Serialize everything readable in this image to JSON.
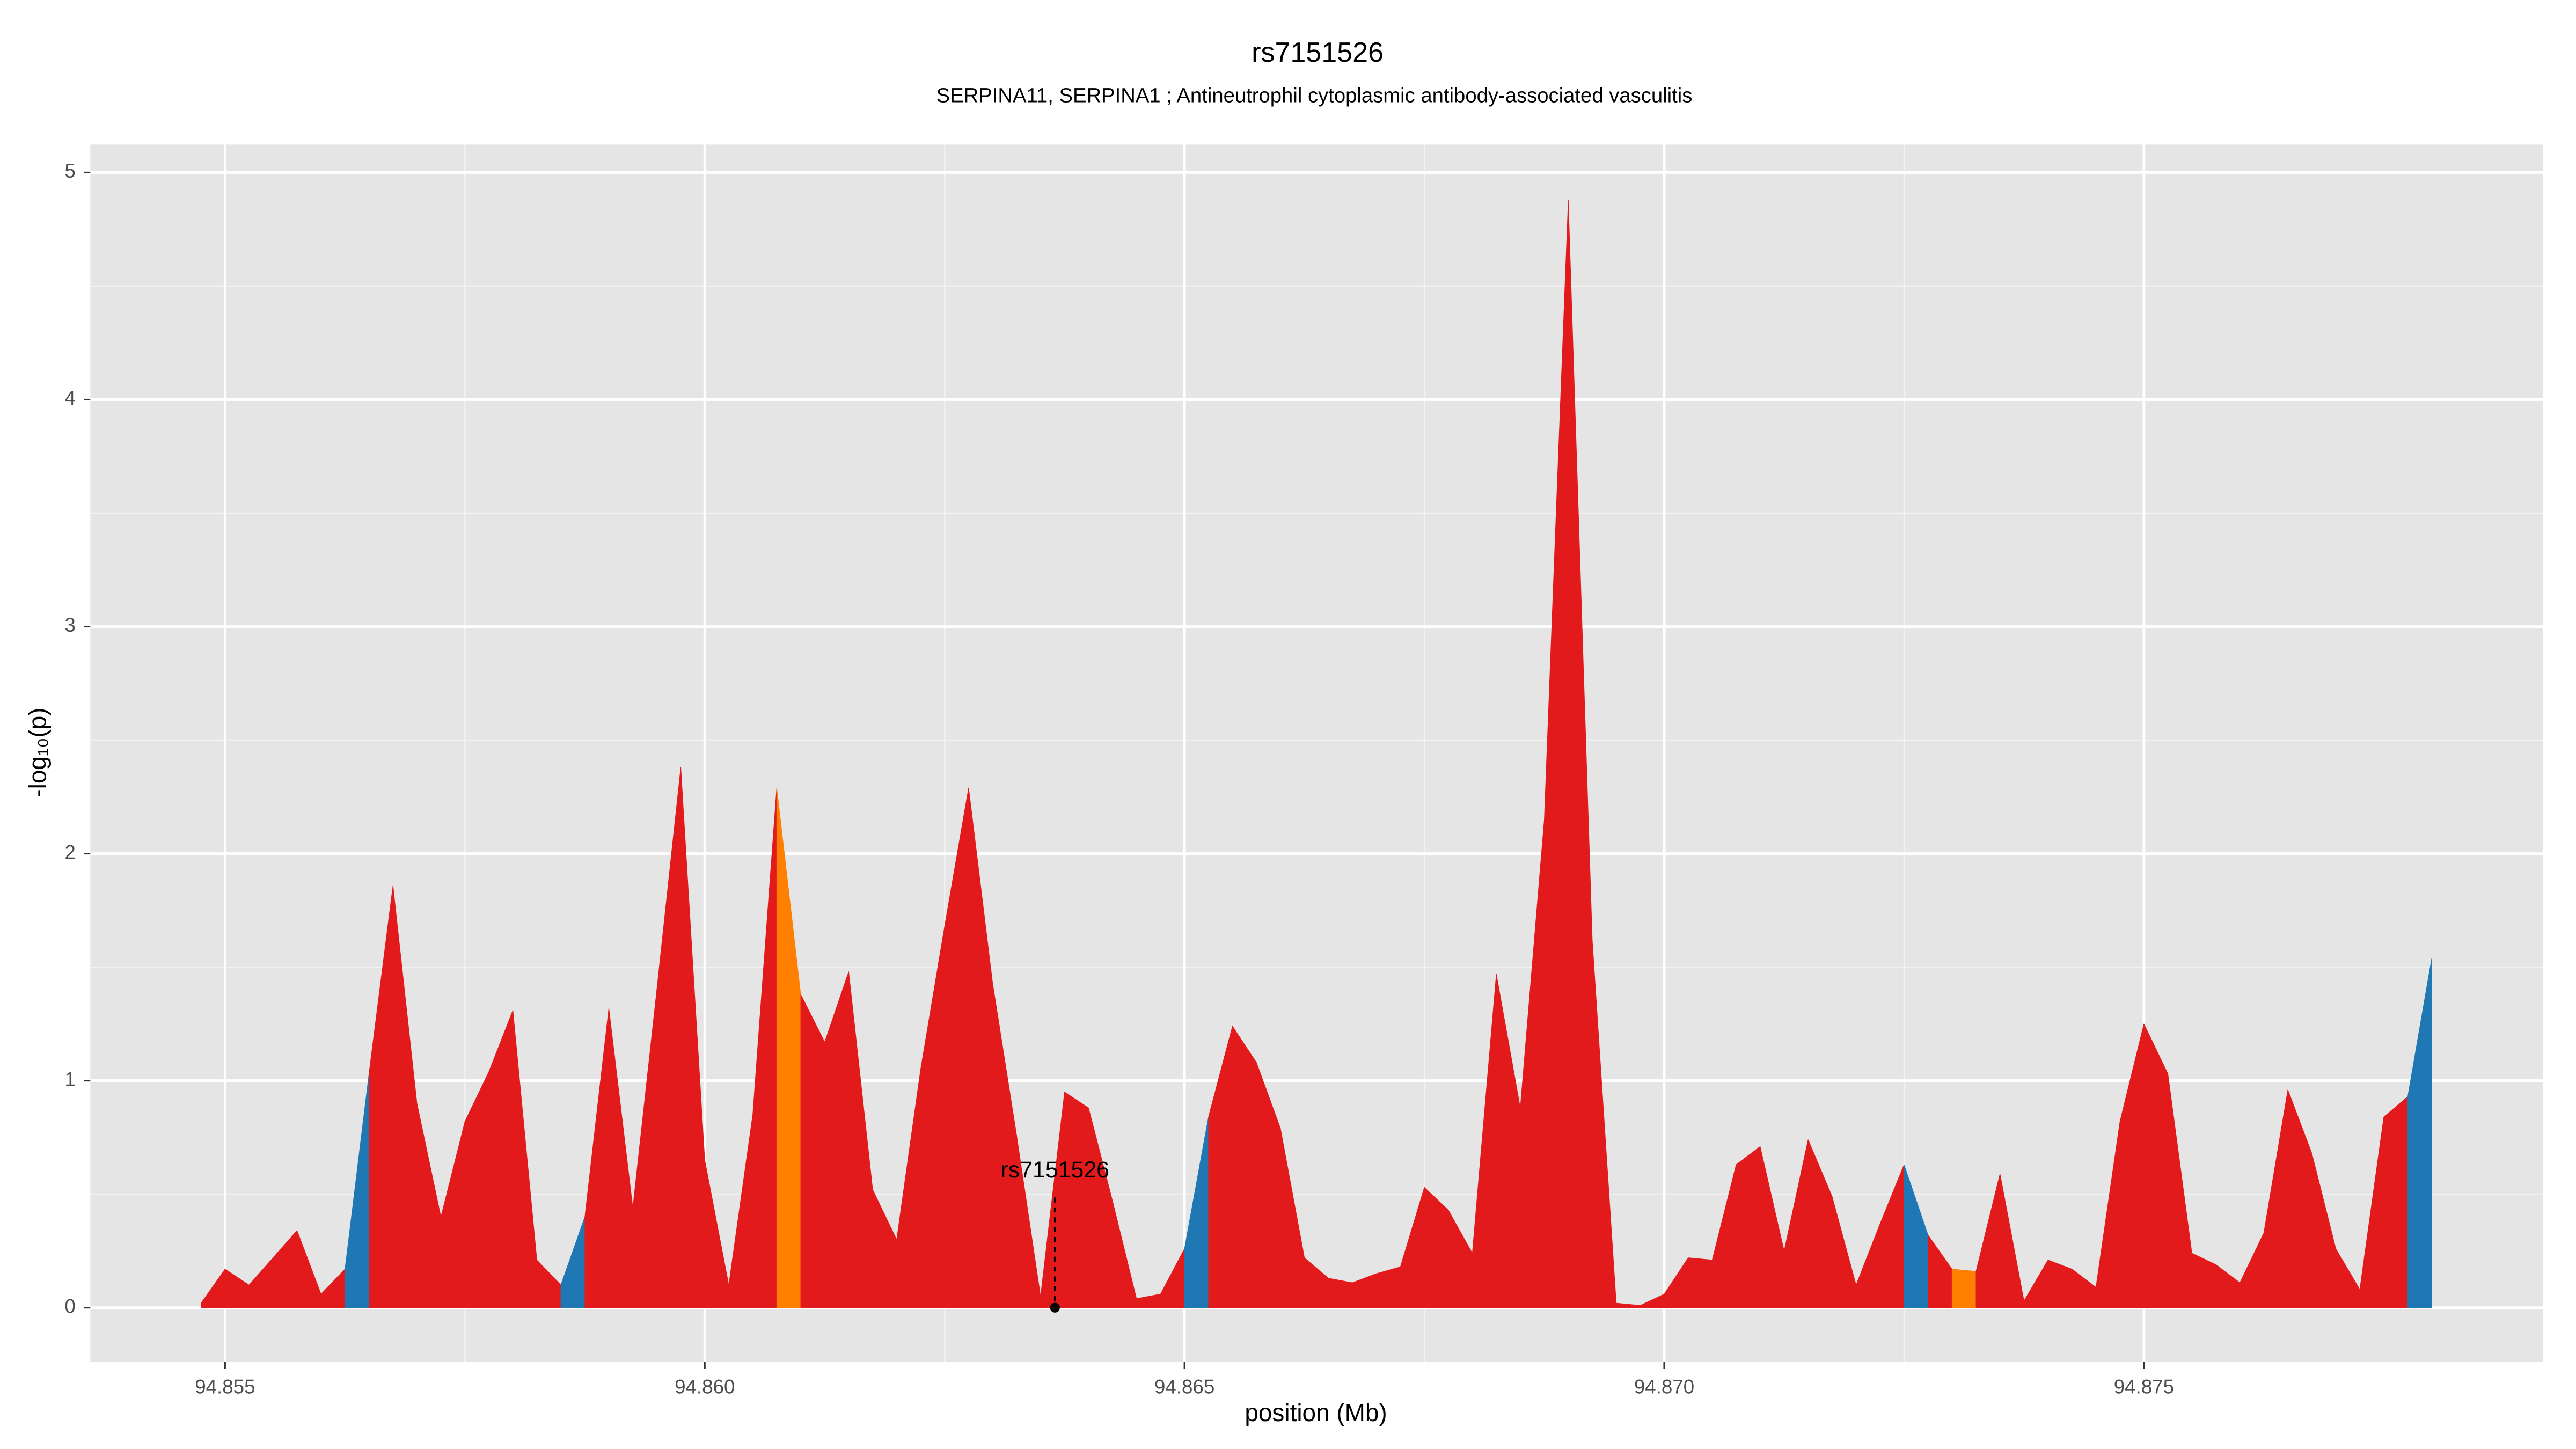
{
  "chart_data": {
    "type": "area",
    "title": "rs7151526",
    "subtitle": "SERPINA11, SERPINA1 ; Antineutrophil cytoplasmic antibody-associated vasculitis",
    "xlabel": "position (Mb)",
    "ylabel": "-log₁₀(p)",
    "xlim": [
      94.853596,
      94.879161
    ],
    "ylim": [
      -0.239,
      5.123
    ],
    "xticks": [
      94.855,
      {
        "value": 94.86,
        "label": "94.860"
      },
      94.865,
      {
        "value": 94.87,
        "label": "94.870"
      },
      94.875
    ],
    "yticks": [
      0,
      1,
      2,
      3,
      4,
      5
    ],
    "grid": true,
    "series": [
      {
        "x": [
          94.85475,
          94.855,
          94.85525,
          94.8555,
          94.85575,
          94.856,
          94.85625,
          94.8565,
          94.85675,
          94.857,
          94.85725,
          94.8575,
          94.85775,
          94.858,
          94.85825,
          94.8585,
          94.85875,
          94.859,
          94.85925,
          94.8595,
          94.85975,
          94.86,
          94.86025,
          94.8605,
          94.86075,
          94.861,
          94.86125,
          94.8615,
          94.86175,
          94.862,
          94.86225,
          94.8625,
          94.86275,
          94.863,
          94.86325,
          94.8635,
          94.86375,
          94.864,
          94.86425,
          94.8645,
          94.86475,
          94.865,
          94.86525,
          94.8655,
          94.86575,
          94.866,
          94.86625,
          94.8665,
          94.86675,
          94.867,
          94.86725,
          94.8675,
          94.86775,
          94.868,
          94.86825,
          94.8685,
          94.86875,
          94.869,
          94.86925,
          94.8695,
          94.86975,
          94.87,
          94.87025,
          94.8705,
          94.87075,
          94.871,
          94.87125,
          94.8715,
          94.87175,
          94.872,
          94.87225,
          94.8725,
          94.87275,
          94.873,
          94.87325,
          94.8735,
          94.87375,
          94.874,
          94.87425,
          94.8745,
          94.87475,
          94.875,
          94.87525,
          94.8755,
          94.87575,
          94.876,
          94.87625,
          94.8765,
          94.87675,
          94.877,
          94.87725,
          94.8775,
          94.87775,
          94.878
        ],
        "values": [
          0.02,
          0.17,
          0.1,
          0.22,
          0.34,
          0.06,
          0.17,
          1.03,
          1.86,
          0.9,
          0.4,
          0.82,
          1.04,
          1.31,
          0.21,
          0.1,
          0.4,
          1.32,
          0.44,
          1.4,
          2.38,
          0.65,
          0.1,
          0.85,
          2.29,
          1.38,
          1.17,
          1.48,
          0.52,
          0.3,
          1.05,
          1.68,
          2.29,
          1.43,
          0.76,
          0.05,
          0.95,
          0.88,
          0.47,
          0.04,
          0.06,
          0.26,
          0.84,
          1.24,
          1.08,
          0.79,
          0.22,
          0.13,
          0.11,
          0.15,
          0.18,
          0.53,
          0.43,
          0.24,
          1.47,
          0.88,
          2.15,
          4.88,
          1.62,
          0.02,
          0.01,
          0.06,
          0.22,
          0.21,
          0.63,
          0.71,
          0.25,
          0.74,
          0.49,
          0.1,
          0.37,
          0.63,
          0.32,
          0.17,
          0.16,
          0.59,
          0.03,
          0.21,
          0.17,
          0.09,
          0.82,
          1.25,
          1.03,
          0.24,
          0.19,
          0.11,
          0.33,
          0.96,
          0.68,
          0.26,
          0.08,
          0.84,
          0.93,
          1.54
        ],
        "segment_colors": [
          "#e31a1c",
          "#e31a1c",
          "#e31a1c",
          "#e31a1c",
          "#e31a1c",
          "#e31a1c",
          "#1f78b4",
          "#e31a1c",
          "#e31a1c",
          "#e31a1c",
          "#e31a1c",
          "#e31a1c",
          "#e31a1c",
          "#e31a1c",
          "#e31a1c",
          "#1f78b4",
          "#e31a1c",
          "#e31a1c",
          "#e31a1c",
          "#e31a1c",
          "#e31a1c",
          "#e31a1c",
          "#e31a1c",
          "#e31a1c",
          "#ff7f00",
          "#e31a1c",
          "#e31a1c",
          "#e31a1c",
          "#e31a1c",
          "#e31a1c",
          "#e31a1c",
          "#e31a1c",
          "#e31a1c",
          "#e31a1c",
          "#e31a1c",
          "#e31a1c",
          "#e31a1c",
          "#e31a1c",
          "#e31a1c",
          "#e31a1c",
          "#e31a1c",
          "#1f78b4",
          "#e31a1c",
          "#e31a1c",
          "#e31a1c",
          "#e31a1c",
          "#e31a1c",
          "#e31a1c",
          "#e31a1c",
          "#e31a1c",
          "#e31a1c",
          "#e31a1c",
          "#e31a1c",
          "#e31a1c",
          "#e31a1c",
          "#e31a1c",
          "#e31a1c",
          "#e31a1c",
          "#e31a1c",
          "#e31a1c",
          "#e31a1c",
          "#e31a1c",
          "#e31a1c",
          "#e31a1c",
          "#e31a1c",
          "#e31a1c",
          "#e31a1c",
          "#e31a1c",
          "#e31a1c",
          "#e31a1c",
          "#e31a1c",
          "#1f78b4",
          "#e31a1c",
          "#ff7f00",
          "#e31a1c",
          "#e31a1c",
          "#e31a1c",
          "#e31a1c",
          "#e31a1c",
          "#e31a1c",
          "#e31a1c",
          "#e31a1c",
          "#e31a1c",
          "#e31a1c",
          "#e31a1c",
          "#e31a1c",
          "#e31a1c",
          "#e31a1c",
          "#e31a1c",
          "#e31a1c",
          "#e31a1c",
          "#e31a1c",
          "#1f78b4"
        ]
      }
    ],
    "annotation": {
      "text": "rs7151526",
      "x": 94.86365,
      "y": 0
    }
  }
}
